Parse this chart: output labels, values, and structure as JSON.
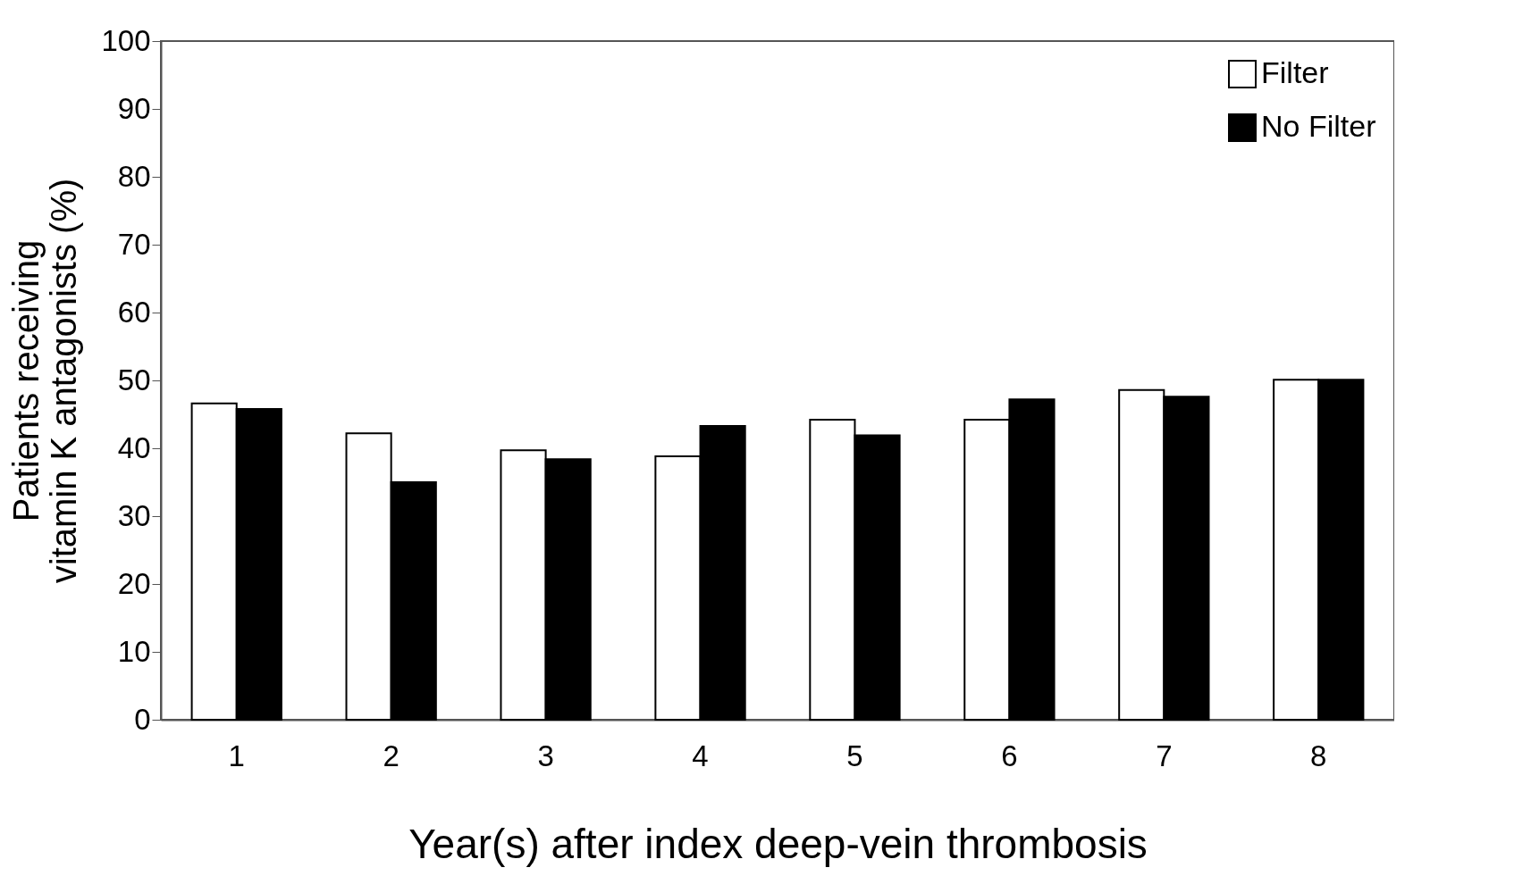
{
  "chart_data": {
    "type": "bar",
    "xlabel": "Year(s) after index deep-vein thrombosis",
    "ylabel": "Patients receiving vitamin K antagonists (%)",
    "categories": [
      "1",
      "2",
      "3",
      "4",
      "5",
      "6",
      "7",
      "8"
    ],
    "series": [
      {
        "name": "Filter",
        "color": "#ffffff",
        "values": [
          46.6,
          42.2,
          39.7,
          38.8,
          44.2,
          44.2,
          48.6,
          50.1
        ]
      },
      {
        "name": "No Filter",
        "color": "#000000",
        "values": [
          45.8,
          35.0,
          38.4,
          43.3,
          41.9,
          47.2,
          47.6,
          50.1
        ]
      }
    ],
    "ylim": [
      0,
      100
    ],
    "yticks": [
      0,
      10,
      20,
      30,
      40,
      50,
      60,
      70,
      80,
      90,
      100
    ],
    "grid": false,
    "legend": "top right"
  }
}
